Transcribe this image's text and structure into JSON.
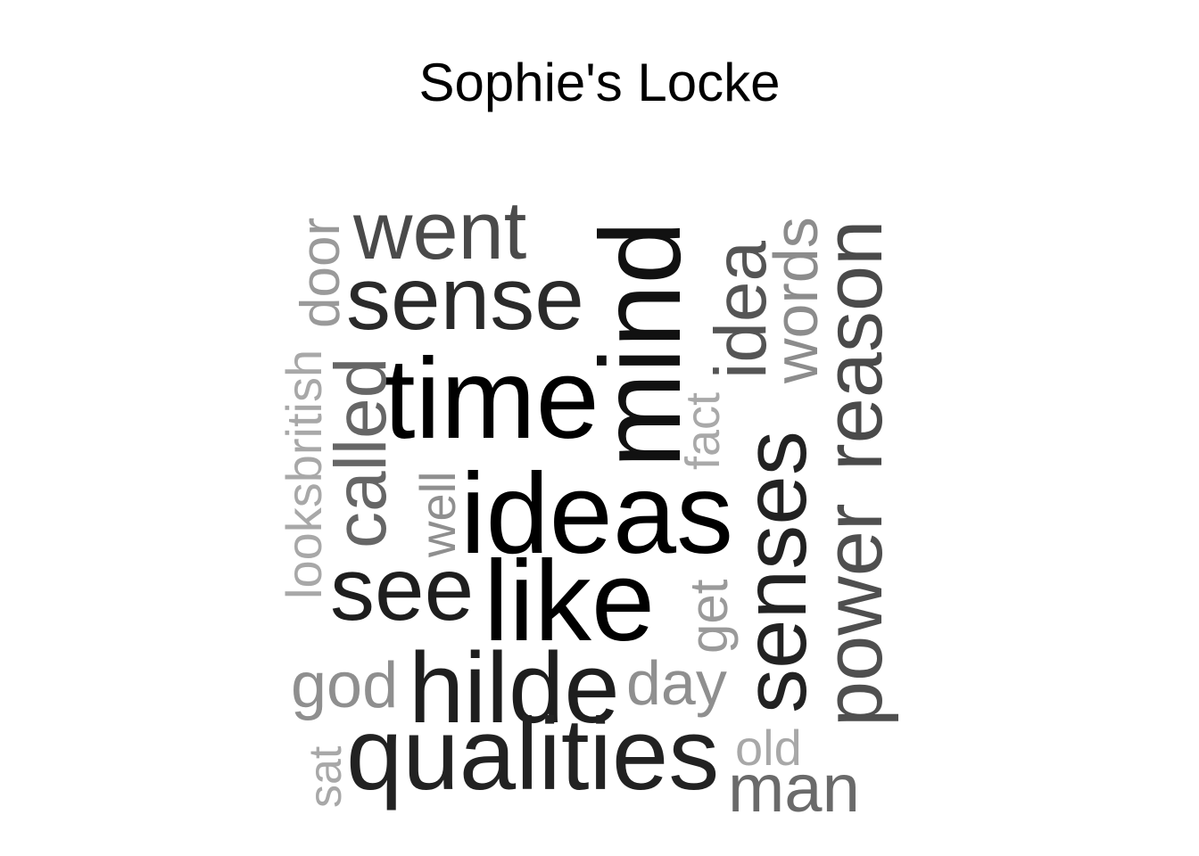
{
  "title": "Sophie's Locke",
  "words": [
    {
      "id": "word-went",
      "text": "went",
      "color": "#4a4a4a"
    },
    {
      "id": "word-sense",
      "text": "sense",
      "color": "#2a2a2a"
    },
    {
      "id": "word-time",
      "text": "time",
      "color": "#000000"
    },
    {
      "id": "word-mind",
      "text": "mind",
      "color": "#111111"
    },
    {
      "id": "word-ideas",
      "text": "ideas",
      "color": "#000000"
    },
    {
      "id": "word-like",
      "text": "like",
      "color": "#000000"
    },
    {
      "id": "word-see",
      "text": "see",
      "color": "#1e1e1e"
    },
    {
      "id": "word-hilde",
      "text": "hilde",
      "color": "#1e1e1e"
    },
    {
      "id": "word-qualities",
      "text": "qualities",
      "color": "#222222"
    },
    {
      "id": "word-senses",
      "text": "senses",
      "color": "#222222"
    },
    {
      "id": "word-power",
      "text": "power",
      "color": "#4f4f4f"
    },
    {
      "id": "word-reason",
      "text": "reason",
      "color": "#4a4a4a"
    },
    {
      "id": "word-idea",
      "text": "idea",
      "color": "#555555"
    },
    {
      "id": "word-words",
      "text": "words",
      "color": "#8c8c8c"
    },
    {
      "id": "word-door",
      "text": "door",
      "color": "#9a9a9a"
    },
    {
      "id": "word-looksbritish",
      "text": "looksbritish",
      "color": "#a8a8a8"
    },
    {
      "id": "word-called",
      "text": "called",
      "color": "#666666"
    },
    {
      "id": "word-well",
      "text": "well",
      "color": "#8f8f8f"
    },
    {
      "id": "word-fact",
      "text": "fact",
      "color": "#a9a9a9"
    },
    {
      "id": "word-get",
      "text": "get",
      "color": "#9a9a9a"
    },
    {
      "id": "word-god",
      "text": "god",
      "color": "#8f8f8f"
    },
    {
      "id": "word-day",
      "text": "day",
      "color": "#8f8f8f"
    },
    {
      "id": "word-sat",
      "text": "sat",
      "color": "#a8a8a8"
    },
    {
      "id": "word-old",
      "text": "old",
      "color": "#a8a8a8"
    },
    {
      "id": "word-man",
      "text": "man",
      "color": "#6a6a6a"
    }
  ]
}
